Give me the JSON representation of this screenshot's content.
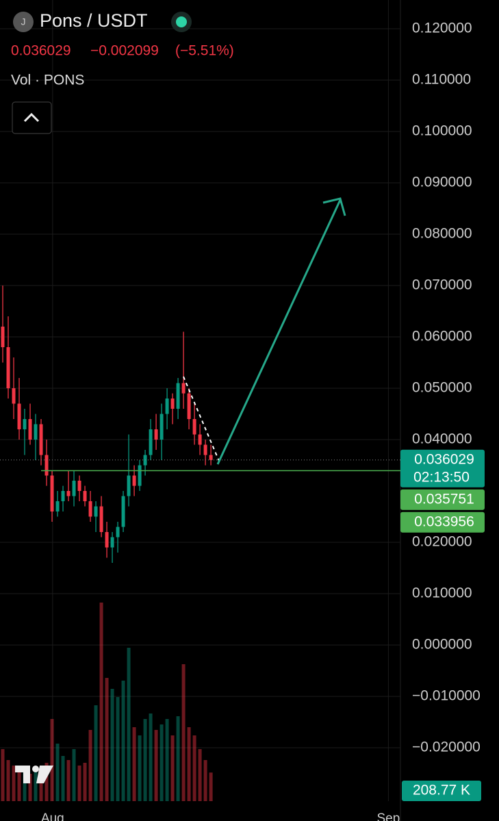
{
  "chart_data": {
    "type": "candlestick",
    "title": "Pons / USDT",
    "icon": "J",
    "last": "0.036029",
    "change": "−0.002099",
    "change_pct": "(−5.51%)",
    "volume_title": "Vol · PONS",
    "x": [
      0,
      1,
      2,
      3,
      4,
      5,
      6,
      7,
      8,
      9,
      10,
      11,
      12,
      13,
      14,
      15,
      16,
      17,
      18,
      19,
      20,
      21,
      22,
      23,
      24,
      25,
      26,
      27,
      28,
      29,
      30,
      31,
      32,
      33,
      34,
      35,
      36,
      37,
      38
    ],
    "open": [
      0.062,
      0.058,
      0.05,
      0.047,
      0.042,
      0.044,
      0.04,
      0.043,
      0.037,
      0.033,
      0.026,
      0.028,
      0.03,
      0.029,
      0.032,
      0.03,
      0.028,
      0.025,
      0.027,
      0.022,
      0.019,
      0.021,
      0.023,
      0.029,
      0.033,
      0.031,
      0.035,
      0.037,
      0.042,
      0.04,
      0.045,
      0.048,
      0.046,
      0.051,
      0.049,
      0.044,
      0.041,
      0.039,
      0.037
    ],
    "high": [
      0.07,
      0.064,
      0.056,
      0.052,
      0.046,
      0.047,
      0.045,
      0.044,
      0.04,
      0.034,
      0.03,
      0.031,
      0.034,
      0.034,
      0.033,
      0.031,
      0.03,
      0.028,
      0.029,
      0.024,
      0.022,
      0.024,
      0.03,
      0.041,
      0.035,
      0.036,
      0.038,
      0.044,
      0.045,
      0.047,
      0.05,
      0.049,
      0.052,
      0.061,
      0.05,
      0.047,
      0.043,
      0.04,
      0.039
    ],
    "low": [
      0.055,
      0.048,
      0.044,
      0.04,
      0.037,
      0.039,
      0.036,
      0.035,
      0.031,
      0.024,
      0.025,
      0.026,
      0.028,
      0.027,
      0.028,
      0.027,
      0.024,
      0.022,
      0.021,
      0.017,
      0.016,
      0.018,
      0.022,
      0.027,
      0.029,
      0.03,
      0.033,
      0.036,
      0.038,
      0.036,
      0.042,
      0.043,
      0.044,
      0.046,
      0.042,
      0.039,
      0.037,
      0.035,
      0.035
    ],
    "close": [
      0.058,
      0.05,
      0.047,
      0.042,
      0.044,
      0.04,
      0.043,
      0.037,
      0.033,
      0.026,
      0.028,
      0.03,
      0.029,
      0.032,
      0.03,
      0.028,
      0.025,
      0.027,
      0.022,
      0.019,
      0.021,
      0.023,
      0.029,
      0.033,
      0.031,
      0.035,
      0.037,
      0.042,
      0.04,
      0.045,
      0.048,
      0.046,
      0.051,
      0.049,
      0.044,
      0.041,
      0.039,
      0.037,
      0.036029
    ],
    "volume": [
      380,
      300,
      260,
      240,
      220,
      200,
      250,
      230,
      280,
      600,
      420,
      330,
      300,
      380,
      260,
      280,
      520,
      700,
      1450,
      900,
      820,
      760,
      880,
      1120,
      540,
      480,
      600,
      640,
      520,
      560,
      600,
      480,
      620,
      1000,
      540,
      480,
      380,
      300,
      208.77
    ],
    "volume_value_label": "208.77 K",
    "vlim": [
      0,
      1500
    ],
    "up_color": "#089981",
    "down_color": "#f23645",
    "xlim": [
      -0.5,
      72.6
    ],
    "xticks": [
      {
        "value": 9.1,
        "label": "Aug"
      },
      {
        "value": 70.4,
        "label": "Sep"
      }
    ],
    "ylim": [
      -0.0304,
      0.1256
    ],
    "yticks": [
      {
        "value": 0.12,
        "label": "0.120000"
      },
      {
        "value": 0.11,
        "label": "0.110000"
      },
      {
        "value": 0.1,
        "label": "0.100000"
      },
      {
        "value": 0.09,
        "label": "0.090000"
      },
      {
        "value": 0.08,
        "label": "0.080000"
      },
      {
        "value": 0.07,
        "label": "0.070000"
      },
      {
        "value": 0.06,
        "label": "0.060000"
      },
      {
        "value": 0.05,
        "label": "0.050000"
      },
      {
        "value": 0.04,
        "label": "0.040000"
      },
      {
        "value": 0.02,
        "label": "0.020000"
      },
      {
        "value": 0.01,
        "label": "0.010000"
      },
      {
        "value": 0,
        "label": "0.000000"
      },
      {
        "value": -0.01,
        "label": "−0.010000"
      },
      {
        "value": -0.02,
        "label": "−0.020000"
      }
    ],
    "grid": true,
    "price_labels": [
      {
        "value": 0.036029,
        "label": "0.036029",
        "sub": "02:13:50",
        "color": "#089981"
      },
      {
        "value": 0.035751,
        "label": "0.035751",
        "color": "#4caf50"
      },
      {
        "value": 0.033956,
        "label": "0.033956",
        "color": "#4caf50"
      }
    ],
    "level": 0.033956,
    "level_color": "#4caf50"
  }
}
